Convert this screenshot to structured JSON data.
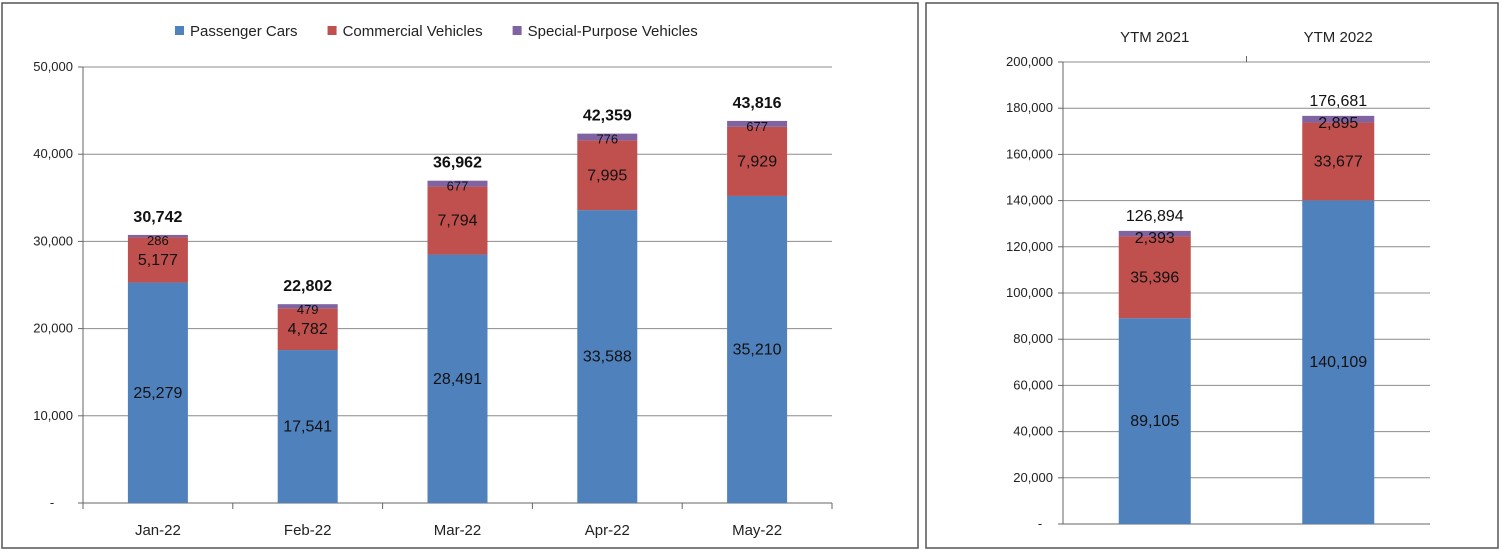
{
  "chart_data": [
    {
      "type": "bar",
      "stacked": true,
      "categories": [
        "Jan-22",
        "Feb-22",
        "Mar-22",
        "Apr-22",
        "May-22"
      ],
      "series": [
        {
          "name": "Passenger Cars",
          "color": "#4f81bd",
          "values": [
            25279,
            17541,
            28491,
            33588,
            35210
          ]
        },
        {
          "name": "Commercial Vehicles",
          "color": "#c0504d",
          "values": [
            5177,
            4782,
            7794,
            7995,
            7929
          ]
        },
        {
          "name": "Special-Purpose Vehicles",
          "color": "#8064a2",
          "values": [
            286,
            479,
            677,
            776,
            677
          ]
        }
      ],
      "value_labels": [
        [
          "25,279",
          "17,541",
          "28,491",
          "33,588",
          "35,210"
        ],
        [
          "5,177",
          "4,782",
          "7,794",
          "7,995",
          "7,929"
        ],
        [
          "286",
          "479",
          "677",
          "776",
          "677"
        ]
      ],
      "totals": [
        30742,
        22802,
        36962,
        42359,
        43816
      ],
      "total_labels": [
        "30,742",
        "22,802",
        "36,962",
        "42,359",
        "43,816"
      ],
      "ylim": [
        0,
        50000
      ],
      "yticks": [
        0,
        10000,
        20000,
        30000,
        40000,
        50000
      ],
      "ytick_labels": [
        "-",
        "10,000",
        "20,000",
        "30,000",
        "40,000",
        "50,000"
      ],
      "grid": true,
      "legend": "top"
    },
    {
      "type": "bar",
      "stacked": true,
      "categories": [
        "YTM 2021",
        "YTM 2022"
      ],
      "series": [
        {
          "name": "Passenger Cars",
          "color": "#4f81bd",
          "values": [
            89105,
            140109
          ]
        },
        {
          "name": "Commercial Vehicles",
          "color": "#c0504d",
          "values": [
            35396,
            33677
          ]
        },
        {
          "name": "Special-Purpose Vehicles",
          "color": "#8064a2",
          "values": [
            2393,
            2895
          ]
        }
      ],
      "value_labels": [
        [
          "89,105",
          "140,109"
        ],
        [
          "35,396",
          "33,677"
        ],
        [
          "2,393",
          "2,895"
        ]
      ],
      "totals": [
        126894,
        176681
      ],
      "total_labels": [
        "126,894",
        "176,681"
      ],
      "ylim": [
        0,
        200000
      ],
      "yticks": [
        0,
        20000,
        40000,
        60000,
        80000,
        100000,
        120000,
        140000,
        160000,
        180000,
        200000
      ],
      "ytick_labels": [
        "-",
        "20,000",
        "40,000",
        "60,000",
        "80,000",
        "100,000",
        "120,000",
        "140,000",
        "160,000",
        "180,000",
        "200,000"
      ],
      "grid": true,
      "category_position": "top"
    }
  ]
}
